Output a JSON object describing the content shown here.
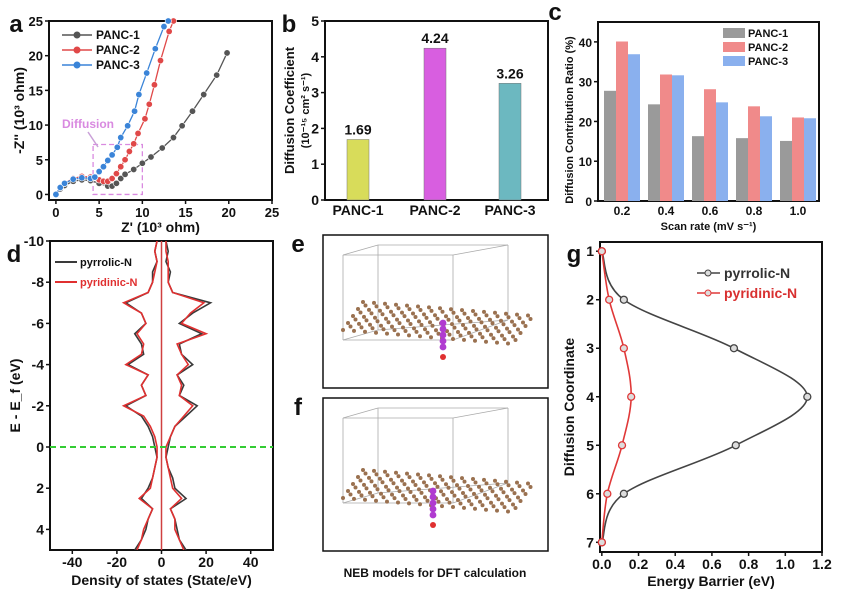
{
  "panel_labels": [
    "a",
    "b",
    "c",
    "d",
    "e",
    "f",
    "g"
  ],
  "models": {
    "caption": "NEB models for DFT calculation",
    "panels": [
      "e",
      "f"
    ],
    "colors": {
      "carbon": "#9a7150",
      "lithium": "#b03bd0",
      "nitrogen": "#e03030"
    }
  },
  "chart_data": [
    {
      "panel": "a",
      "type": "line",
      "xlabel": "Z' (10³ ohm)",
      "ylabel": "-Z'' (10³ ohm)",
      "xlim": [
        -0.8,
        25
      ],
      "ylim": [
        -0.8,
        25
      ],
      "xticks": [
        "0",
        "5",
        "10",
        "15",
        "20",
        "25"
      ],
      "yticks": [
        "0",
        "5",
        "10",
        "15",
        "20",
        "25"
      ],
      "annotation": {
        "text": "Diffusion",
        "box_x": [
          4.3,
          10
        ],
        "box_y": [
          0,
          7.2
        ],
        "color": "#d98ae0"
      },
      "series": [
        {
          "name": "PANC-1",
          "color": "#555555",
          "points": [
            [
              0,
              0
            ],
            [
              0.5,
              0.8
            ],
            [
              1,
              1.3
            ],
            [
              2,
              1.9
            ],
            [
              3,
              2.1
            ],
            [
              4,
              2
            ],
            [
              5,
              1.6
            ],
            [
              6,
              1.2
            ],
            [
              6.5,
              1.2
            ],
            [
              7,
              1.6
            ],
            [
              7.5,
              2.3
            ],
            [
              8,
              2.9
            ],
            [
              9,
              3.6
            ],
            [
              10,
              4.5
            ],
            [
              11,
              5.4
            ],
            [
              12.3,
              6.7
            ],
            [
              13.6,
              8.2
            ],
            [
              14.6,
              9.9
            ],
            [
              15.8,
              12
            ],
            [
              17.1,
              14.4
            ],
            [
              18.6,
              17.2
            ],
            [
              19.8,
              20.4
            ]
          ]
        },
        {
          "name": "PANC-2",
          "color": "#e04848",
          "points": [
            [
              0,
              0
            ],
            [
              0.5,
              1
            ],
            [
              1,
              1.6
            ],
            [
              2,
              2.3
            ],
            [
              3,
              2.6
            ],
            [
              4,
              2.5
            ],
            [
              5,
              2.1
            ],
            [
              5.5,
              1.9
            ],
            [
              6,
              1.9
            ],
            [
              6.5,
              2.3
            ],
            [
              7,
              3
            ],
            [
              7.5,
              4
            ],
            [
              8,
              5
            ],
            [
              8.5,
              6.2
            ],
            [
              9,
              7.3
            ],
            [
              9.5,
              8.8
            ],
            [
              10.3,
              10.9
            ],
            [
              10.8,
              13
            ],
            [
              11.4,
              15.8
            ],
            [
              12.1,
              19.3
            ],
            [
              13.1,
              23.5
            ],
            [
              13.6,
              25
            ]
          ]
        },
        {
          "name": "PANC-3",
          "color": "#3a84d8",
          "points": [
            [
              0,
              0
            ],
            [
              0.5,
              1
            ],
            [
              1,
              1.6
            ],
            [
              2,
              2.2
            ],
            [
              3,
              2.4
            ],
            [
              4,
              2.3
            ],
            [
              4.5,
              2.5
            ],
            [
              5,
              3.3
            ],
            [
              5.5,
              4
            ],
            [
              6,
              4.9
            ],
            [
              6.5,
              5.7
            ],
            [
              7.1,
              6.8
            ],
            [
              7.5,
              8.2
            ],
            [
              8.3,
              9.9
            ],
            [
              9.1,
              12
            ],
            [
              9.6,
              14.4
            ],
            [
              10.5,
              17.5
            ],
            [
              11.5,
              21
            ],
            [
              12.5,
              24.2
            ],
            [
              13,
              25
            ]
          ]
        }
      ]
    },
    {
      "panel": "b",
      "type": "bar",
      "xlabel": "",
      "ylabel": "Diffusion Coefficient",
      "ylabel2": "(10⁻¹⁵ cm² s⁻¹)",
      "ylim": [
        0,
        5
      ],
      "yticks": [
        "0",
        "1",
        "2",
        "3",
        "4",
        "5"
      ],
      "categories": [
        "PANC-1",
        "PANC-2",
        "PANC-3"
      ],
      "values": [
        1.69,
        4.24,
        3.26
      ],
      "value_labels": [
        "1.69",
        "4.24",
        "3.26"
      ],
      "colors": [
        "#d8dc5a",
        "#d85ee0",
        "#6cb8c0"
      ]
    },
    {
      "panel": "c",
      "type": "bar",
      "xlabel": "Scan rate (mV s⁻¹)",
      "ylabel": "Diffusion Contribution Ratio (%)",
      "ylim": [
        0,
        45
      ],
      "yticks": [
        "0",
        "10",
        "20",
        "30",
        "40"
      ],
      "categories": [
        "0.2",
        "0.4",
        "0.6",
        "0.8",
        "1.0"
      ],
      "series": [
        {
          "name": "PANC-1",
          "color": "#9a9a9a",
          "values": [
            27.7,
            24.3,
            16.3,
            15.8,
            15.1
          ]
        },
        {
          "name": "PANC-2",
          "color": "#f08a8a",
          "values": [
            40.1,
            31.8,
            28.1,
            23.8,
            21.0
          ]
        },
        {
          "name": "PANC-3",
          "color": "#8ab0ee",
          "values": [
            36.9,
            31.6,
            24.8,
            21.3,
            20.8
          ]
        }
      ],
      "legend": "top-right"
    },
    {
      "panel": "d",
      "type": "line",
      "xlabel": "Density of states (State/eV)",
      "ylabel": "E - E_f (eV)",
      "xlim": [
        -50,
        50
      ],
      "ylim": [
        -10,
        5
      ],
      "xticks": [
        "-40",
        "-20",
        "0",
        "20",
        "40"
      ],
      "yticks": [
        "-10",
        "-8",
        "-6",
        "-4",
        "-2",
        "0",
        "2",
        "4"
      ],
      "fermi_level": 0,
      "fermi_color": "#33cc33",
      "energies": [
        -10,
        -9.5,
        -9,
        -8.5,
        -8,
        -7.5,
        -7,
        -6.5,
        -6,
        -5.5,
        -5,
        -4.5,
        -4,
        -3.5,
        -3,
        -2.5,
        -2,
        -1.5,
        -1,
        -0.5,
        0,
        0.5,
        1,
        1.5,
        2,
        2.5,
        3,
        3.5,
        4,
        4.5,
        5
      ],
      "series": [
        {
          "name": "pyrrolic-N",
          "color": "#3a3a3a",
          "up": [
            2,
            3,
            2,
            4,
            3,
            5,
            22,
            14,
            8,
            18,
            8,
            9,
            14,
            7,
            10,
            8,
            16,
            11,
            6,
            4,
            3,
            2,
            3,
            5,
            6,
            11,
            4,
            6,
            7,
            8,
            11
          ],
          "down": [
            2,
            3,
            2,
            4,
            4,
            6,
            16,
            9,
            7,
            12,
            9,
            8,
            15,
            6,
            9,
            7,
            16,
            9,
            6,
            4,
            3,
            2,
            3,
            4,
            6,
            9,
            4,
            6,
            7,
            9,
            12
          ]
        },
        {
          "name": "pyridinic-N",
          "color": "#e03030",
          "up": [
            2,
            2,
            3,
            3,
            3,
            5,
            19,
            13,
            9,
            20,
            7,
            9,
            12,
            7,
            9,
            8,
            14,
            10,
            6,
            4,
            2,
            2,
            3,
            4,
            5,
            9,
            4,
            6,
            6,
            8,
            10
          ],
          "down": [
            2,
            3,
            2,
            3,
            4,
            6,
            17,
            9,
            7,
            11,
            8,
            9,
            16,
            6,
            9,
            7,
            17,
            8,
            5,
            3,
            2,
            2,
            3,
            4,
            5,
            10,
            4,
            6,
            8,
            9,
            11
          ]
        }
      ]
    },
    {
      "panel": "g",
      "type": "line",
      "xlabel": "Energy Barrier (eV)",
      "ylabel": "Diffusion Coordinate",
      "xlim": [
        -0.01,
        1.2
      ],
      "ylim": [
        0.81,
        7.2
      ],
      "xticks": [
        "0.0",
        "0.2",
        "0.4",
        "0.6",
        "0.8",
        "1.0",
        "1.2"
      ],
      "yticks": [
        "1",
        "2",
        "3",
        "4",
        "5",
        "6",
        "7"
      ],
      "series": [
        {
          "name": "pyrrolic-N",
          "color": "#444444",
          "x": [
            0,
            0.12,
            0.72,
            1.12,
            0.73,
            0.12,
            0
          ],
          "y": [
            1,
            2,
            3,
            4,
            5,
            6,
            7
          ]
        },
        {
          "name": "pyridinic-N",
          "color": "#e03838",
          "x": [
            0,
            0.04,
            0.12,
            0.16,
            0.11,
            0.03,
            0
          ],
          "y": [
            1,
            2,
            3,
            4,
            5,
            6,
            7
          ]
        }
      ]
    }
  ]
}
